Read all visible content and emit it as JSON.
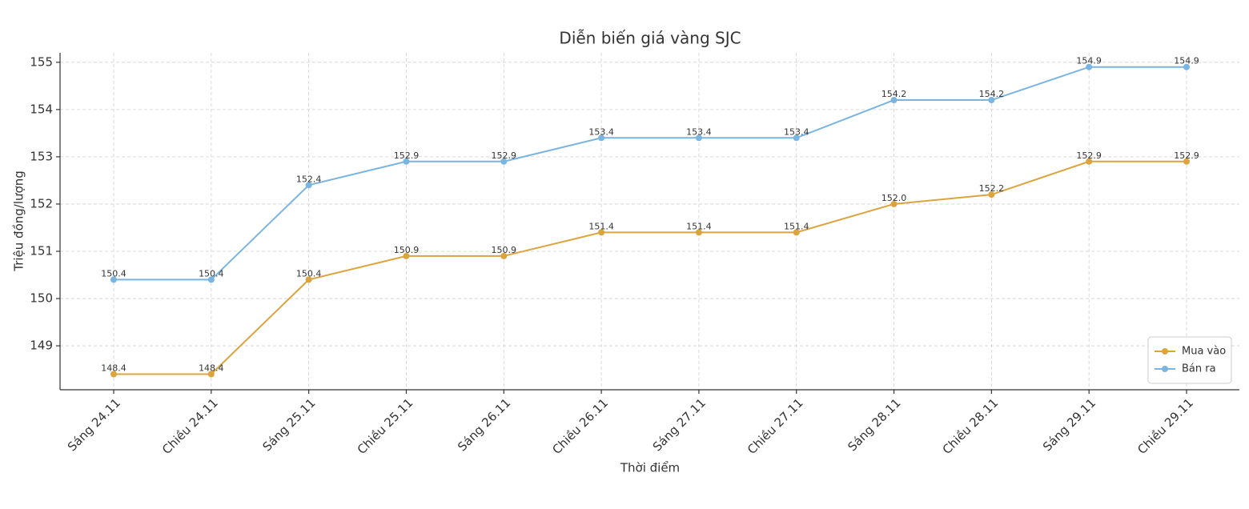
{
  "chart_data": {
    "type": "line",
    "title": "Diễn biến giá vàng SJC",
    "x_label": "Thời điểm",
    "y_label": "Triệu đồng/lượng",
    "categories": [
      "Sáng 24.11",
      "Chiều 24.11",
      "Sáng 25.11",
      "Chiều 25.11",
      "Sáng 26.11",
      "Chiều 26.11",
      "Sáng 27.11",
      "Chiều 27.11",
      "Sáng 28.11",
      "Chiều 28.11",
      "Sáng 29.11",
      "Chiều 29.11"
    ],
    "series": [
      {
        "name": "Mua vào",
        "color": "#dba43f",
        "values": [
          148.4,
          148.4,
          150.4,
          150.9,
          150.9,
          151.4,
          151.4,
          151.4,
          152,
          152.2,
          152.9,
          152.9
        ],
        "value_labels": [
          "148.4",
          "148.4",
          "150.4",
          "150.9",
          "150.9",
          "151.4",
          "151.4",
          "151.4",
          "152.0",
          "152.2",
          "152.9",
          "152.9"
        ]
      },
      {
        "name": "Bán ra",
        "color": "#7ab4e0",
        "values": [
          150.4,
          150.4,
          152.4,
          152.9,
          152.9,
          153.4,
          153.4,
          153.4,
          154.2,
          154.2,
          154.9,
          154.9
        ],
        "value_labels": [
          "150.4",
          "150.4",
          "152.4",
          "152.9",
          "152.9",
          "153.4",
          "153.4",
          "153.4",
          "154.2",
          "154.2",
          "154.9",
          "154.9"
        ]
      }
    ],
    "ylim": [
      148.07,
      155.2
    ],
    "yticks": [
      149,
      150,
      151,
      152,
      153,
      154,
      155
    ],
    "grid": true,
    "legend": "lower right"
  }
}
